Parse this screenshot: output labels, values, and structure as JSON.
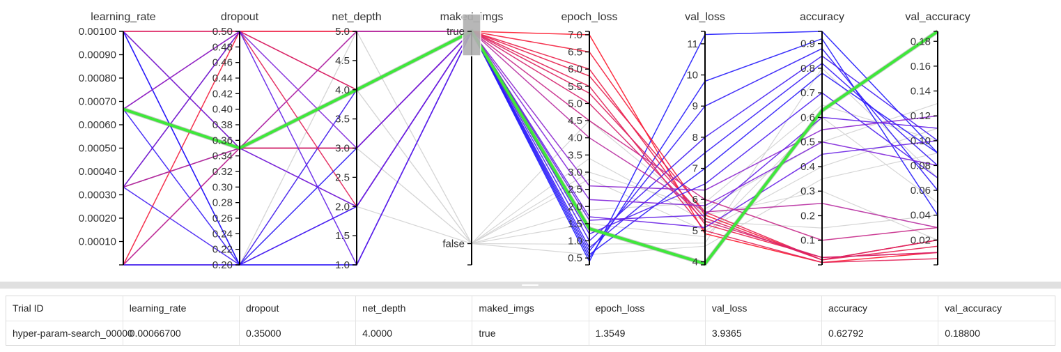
{
  "axes": [
    {
      "key": "learning_rate",
      "title": "learning_rate",
      "ticks": [
        "0.00010",
        "0.00020",
        "0.00030",
        "0.00040",
        "0.00050",
        "0.00060",
        "0.00070",
        "0.00080",
        "0.00090",
        "0.00100"
      ],
      "tick_values": [
        0.0001,
        0.0002,
        0.0003,
        0.0004,
        0.0005,
        0.0006,
        0.0007,
        0.0008,
        0.0009,
        0.001
      ],
      "range": [
        0,
        0.001
      ]
    },
    {
      "key": "dropout",
      "title": "dropout",
      "ticks": [
        "0.20",
        "0.22",
        "0.24",
        "0.26",
        "0.28",
        "0.30",
        "0.32",
        "0.34",
        "0.36",
        "0.38",
        "0.40",
        "0.42",
        "0.44",
        "0.46",
        "0.48",
        "0.50"
      ],
      "tick_values": [
        0.2,
        0.22,
        0.24,
        0.26,
        0.28,
        0.3,
        0.32,
        0.34,
        0.36,
        0.38,
        0.4,
        0.42,
        0.44,
        0.46,
        0.48,
        0.5
      ],
      "range": [
        0.2,
        0.5
      ]
    },
    {
      "key": "net_depth",
      "title": "net_depth",
      "ticks": [
        "1.0",
        "1.5",
        "2.0",
        "2.5",
        "3.0",
        "3.5",
        "4.0",
        "4.5",
        "5.0"
      ],
      "tick_values": [
        1,
        1.5,
        2,
        2.5,
        3,
        3.5,
        4,
        4.5,
        5
      ],
      "range": [
        1,
        5
      ]
    },
    {
      "key": "maked_imgs",
      "title": "maked_imgs",
      "ticks": [
        "false",
        "true"
      ],
      "tick_values": [
        0,
        1
      ],
      "range": [
        -0.1,
        1
      ],
      "categorical": true
    },
    {
      "key": "epoch_loss",
      "title": "epoch_loss",
      "ticks": [
        "0.5",
        "1.0",
        "1.5",
        "2.0",
        "2.5",
        "3.0",
        "3.5",
        "4.0",
        "4.5",
        "5.0",
        "5.5",
        "6.0",
        "6.5",
        "7.0"
      ],
      "tick_values": [
        0.5,
        1,
        1.5,
        2,
        2.5,
        3,
        3.5,
        4,
        4.5,
        5,
        5.5,
        6,
        6.5,
        7
      ],
      "range": [
        0.3,
        7.1
      ]
    },
    {
      "key": "val_loss",
      "title": "val_loss",
      "ticks": [
        "4",
        "5",
        "6",
        "7",
        "8",
        "9",
        "10",
        "11"
      ],
      "tick_values": [
        4,
        5,
        6,
        7,
        8,
        9,
        10,
        11
      ],
      "range": [
        3.9,
        11.4
      ]
    },
    {
      "key": "accuracy",
      "title": "accuracy",
      "ticks": [
        "0.1",
        "0.2",
        "0.3",
        "0.4",
        "0.5",
        "0.6",
        "0.7",
        "0.8",
        "0.9"
      ],
      "tick_values": [
        0.1,
        0.2,
        0.3,
        0.4,
        0.5,
        0.6,
        0.7,
        0.8,
        0.9
      ],
      "range": [
        0,
        0.95
      ]
    },
    {
      "key": "val_accuracy",
      "title": "val_accuracy",
      "ticks": [
        "0.02",
        "0.04",
        "0.06",
        "0.08",
        "0.10",
        "0.12",
        "0.14",
        "0.16",
        "0.18"
      ],
      "tick_values": [
        0.02,
        0.04,
        0.06,
        0.08,
        0.1,
        0.12,
        0.14,
        0.16,
        0.18
      ],
      "range": [
        0,
        0.188
      ]
    }
  ],
  "chart_data": {
    "type": "parallel-coordinates",
    "brush": {
      "axis": "maked_imgs",
      "selected": "true"
    },
    "highlight_color": "#3ee83a",
    "inactive_color": "#d6d6d6",
    "color_scale": [
      "#1a1aff",
      "#7a22e0",
      "#b030b0",
      "#e0205a",
      "#ff1a2a"
    ],
    "highlighted_trial": [
      0.000667,
      0.35,
      4,
      1,
      1.3549,
      3.9365,
      0.62792,
      0.188
    ],
    "active_trials": [
      [
        0.001,
        0.5,
        5,
        1,
        7.0,
        4.9,
        0.01,
        0.01
      ],
      [
        0.0,
        0.2,
        1,
        1,
        0.4,
        11.3,
        0.95,
        0.09
      ],
      [
        0.001,
        0.2,
        2,
        1,
        0.5,
        9.8,
        0.92,
        0.04
      ],
      [
        0.000333,
        0.35,
        3,
        1,
        0.7,
        9.0,
        0.88,
        0.06
      ],
      [
        0.0,
        0.5,
        4,
        1,
        6.5,
        5.5,
        0.02,
        0.02
      ],
      [
        0.000667,
        0.5,
        5,
        1,
        6.0,
        5.2,
        0.03,
        0.01
      ],
      [
        0.001,
        0.35,
        3,
        1,
        5.8,
        5.6,
        0.02,
        0.015
      ],
      [
        0.000333,
        0.5,
        2,
        1,
        5.5,
        5.0,
        0.01,
        0.005
      ],
      [
        0.000333,
        0.2,
        4,
        1,
        1.0,
        8.0,
        0.85,
        0.1
      ],
      [
        0.000667,
        0.2,
        1,
        1,
        0.8,
        7.5,
        0.82,
        0.08
      ],
      [
        0.0,
        0.35,
        3,
        1,
        5.3,
        5.4,
        0.02,
        0.02
      ],
      [
        0.001,
        0.5,
        4,
        1,
        5.0,
        5.3,
        0.03,
        0.01
      ],
      [
        0.000333,
        0.35,
        2,
        1,
        4.5,
        6.0,
        0.1,
        0.03
      ],
      [
        0.000667,
        0.35,
        5,
        1,
        2.6,
        6.3,
        0.55,
        0.12
      ],
      [
        0.001,
        0.2,
        3,
        1,
        0.6,
        7.0,
        0.78,
        0.09
      ],
      [
        0.0,
        0.2,
        2,
        1,
        1.2,
        6.5,
        0.7,
        0.07
      ],
      [
        0.000333,
        0.5,
        1,
        1,
        1.6,
        5.5,
        0.6,
        0.11
      ],
      [
        0.000667,
        0.5,
        3,
        1,
        2.2,
        5.8,
        0.5,
        0.08
      ],
      [
        0.001,
        0.35,
        2,
        1,
        1.7,
        5.1,
        0.45,
        0.1
      ],
      [
        0.0,
        0.35,
        5,
        1,
        4.0,
        5.6,
        0.25,
        0.03
      ]
    ],
    "inactive_trials": [
      [
        0.0,
        0.2,
        4,
        0,
        2.8,
        5.0,
        0.4,
        0.11
      ],
      [
        0.0,
        0.2,
        4,
        0,
        1.5,
        4.8,
        0.6,
        0.05
      ],
      [
        0.0,
        0.2,
        3,
        0,
        3.0,
        5.7,
        0.5,
        0.13
      ],
      [
        0.0,
        0.2,
        5,
        0,
        0.9,
        4.6,
        0.8,
        0.07
      ],
      [
        0.0,
        0.2,
        4,
        0,
        4.5,
        5.5,
        0.3,
        0.02
      ],
      [
        0.0,
        0.2,
        2,
        0,
        0.6,
        4.5,
        0.35,
        0.09
      ],
      [
        0.0,
        0.2,
        3,
        0,
        1.9,
        5.9,
        0.65,
        0.1
      ],
      [
        0.0,
        0.2,
        5,
        0,
        3.4,
        5.3,
        0.15,
        0.04
      ]
    ]
  },
  "table": {
    "headers": [
      "Trial ID",
      "learning_rate",
      "dropout",
      "net_depth",
      "maked_imgs",
      "epoch_loss",
      "val_loss",
      "accuracy",
      "val_accuracy"
    ],
    "row": [
      "hyper-param-search_00000",
      "0.00066700",
      "0.35000",
      "4.0000",
      "true",
      "1.3549",
      "3.9365",
      "0.62792",
      "0.18800"
    ]
  }
}
